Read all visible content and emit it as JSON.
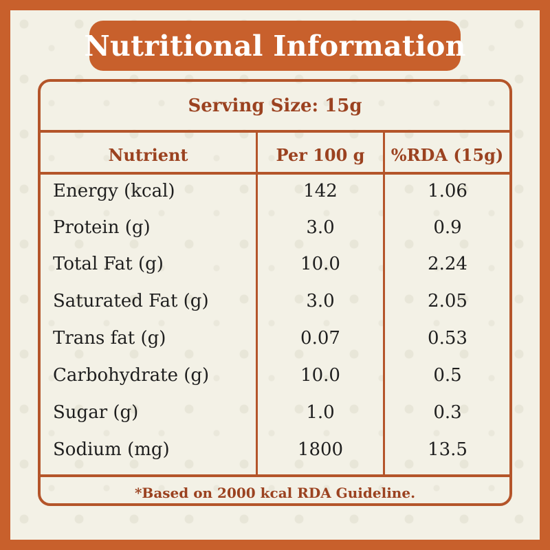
{
  "title": "Nutritional Information",
  "serving_size": "Serving Size: 15g",
  "columns": [
    "Nutrient",
    "Per 100 g",
    "%RDA (15g)"
  ],
  "rows": [
    {
      "nutrient": "Energy (kcal)",
      "per_100g": "142",
      "rda": "1.06"
    },
    {
      "nutrient": "Protein (g)",
      "per_100g": "3.0",
      "rda": "0.9"
    },
    {
      "nutrient": "Total Fat (g)",
      "per_100g": "10.0",
      "rda": "2.24"
    },
    {
      "nutrient": "Saturated Fat (g)",
      "per_100g": "3.0",
      "rda": "2.05"
    },
    {
      "nutrient": "Trans fat (g)",
      "per_100g": "0.07",
      "rda": "0.53"
    },
    {
      "nutrient": "Carbohydrate (g)",
      "per_100g": "10.0",
      "rda": "0.5"
    },
    {
      "nutrient": "Sugar (g)",
      "per_100g": "1.0",
      "rda": "0.3"
    },
    {
      "nutrient": "Sodium (mg)",
      "per_100g": "1800",
      "rda": "13.5"
    }
  ],
  "footnote": "*Based on 2000 kcal RDA Guideline.",
  "colors": {
    "accent": "#c8602c",
    "heading_text": "#9b4220",
    "background": "#f3f1e6",
    "body_text": "#1e1e1e"
  }
}
